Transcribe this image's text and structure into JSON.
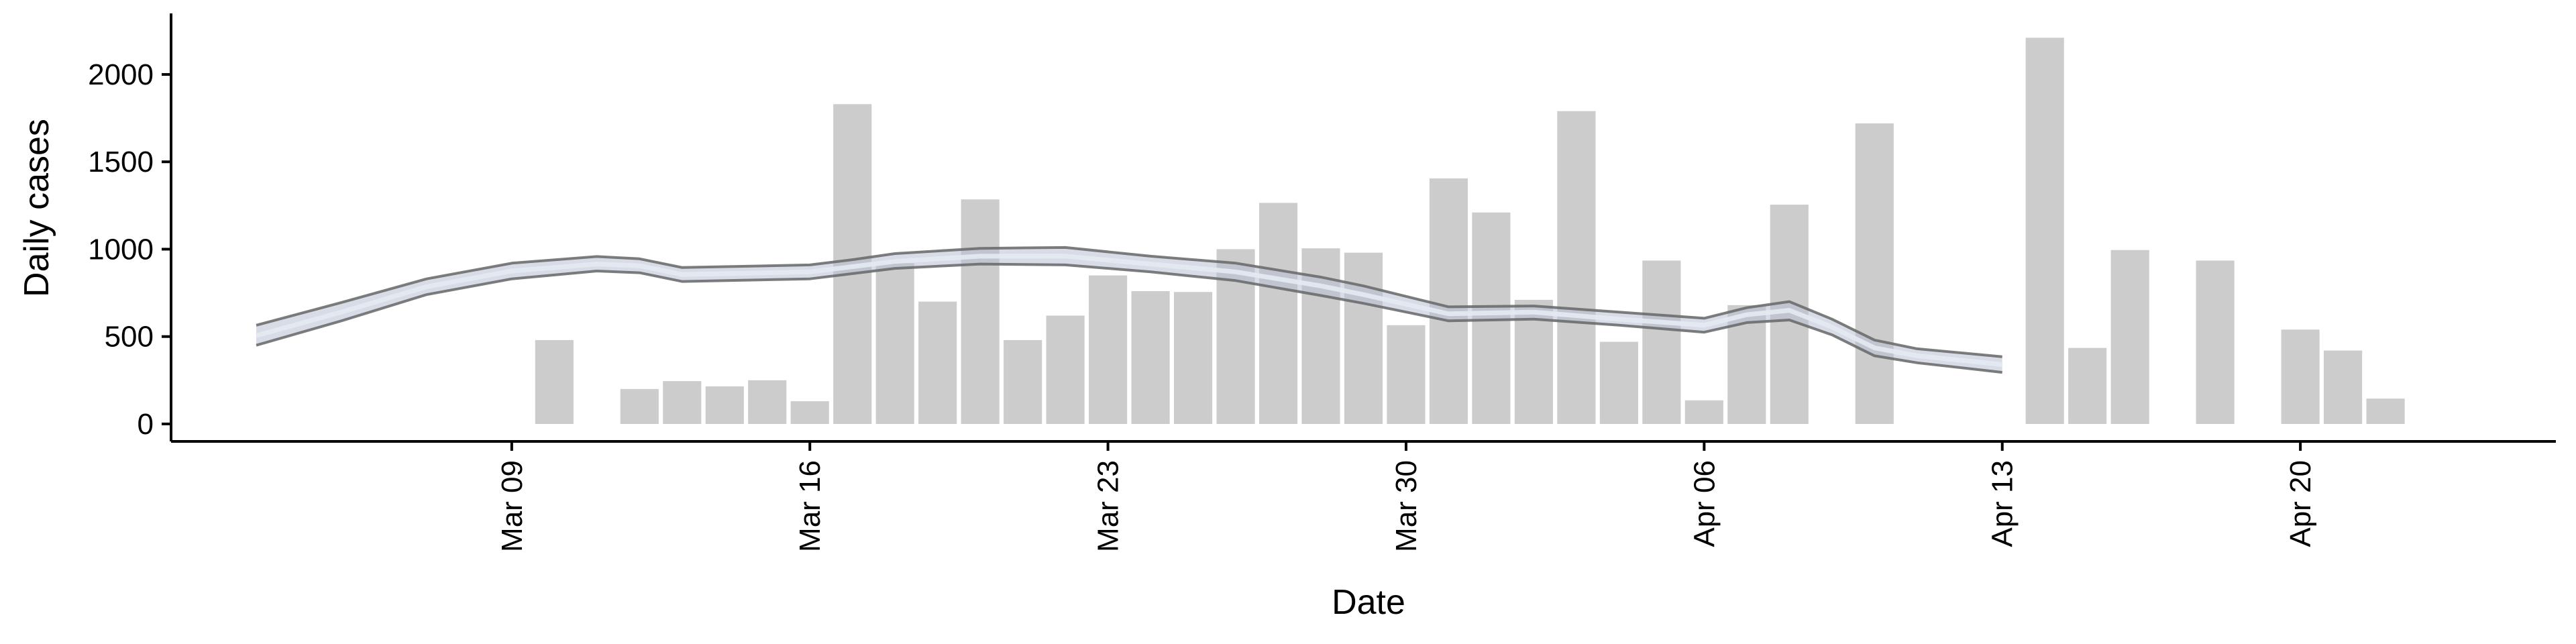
{
  "chart_data": {
    "type": "bar",
    "title": "",
    "xlabel": "Date",
    "ylabel": "Daily cases",
    "xlim": [
      "2020-03-01",
      "2020-04-26"
    ],
    "ylim": [
      -100,
      2330
    ],
    "grid": false,
    "x_ticks": [
      "2020-03-09",
      "2020-03-16",
      "2020-03-23",
      "2020-03-30",
      "2020-04-06",
      "2020-04-13",
      "2020-04-20"
    ],
    "x_tick_labels": [
      "Mar 09",
      "Mar 16",
      "Mar 23",
      "Mar 30",
      "Apr 06",
      "Apr 13",
      "Apr 20"
    ],
    "y_ticks": [
      0,
      500,
      1000,
      1500,
      2000
    ],
    "y_tick_labels": [
      "0",
      "500",
      "1000",
      "1500",
      "2000"
    ],
    "colors": {
      "bars": "#cccccc",
      "band_outline": "#666666",
      "band_fill": "#b8c0d4",
      "center_line": "#e6eaf2",
      "axis": "#000000"
    },
    "series": [
      {
        "type": "bar",
        "data": [
          {
            "date": "2020-03-10",
            "value": 480
          },
          {
            "date": "2020-03-12",
            "value": 200
          },
          {
            "date": "2020-03-13",
            "value": 245
          },
          {
            "date": "2020-03-14",
            "value": 215
          },
          {
            "date": "2020-03-15",
            "value": 250
          },
          {
            "date": "2020-03-16",
            "value": 130
          },
          {
            "date": "2020-03-17",
            "value": 1830
          },
          {
            "date": "2020-03-18",
            "value": 920
          },
          {
            "date": "2020-03-19",
            "value": 700
          },
          {
            "date": "2020-03-20",
            "value": 1285
          },
          {
            "date": "2020-03-21",
            "value": 480
          },
          {
            "date": "2020-03-22",
            "value": 620
          },
          {
            "date": "2020-03-23",
            "value": 850
          },
          {
            "date": "2020-03-24",
            "value": 760
          },
          {
            "date": "2020-03-25",
            "value": 755
          },
          {
            "date": "2020-03-26",
            "value": 1000
          },
          {
            "date": "2020-03-27",
            "value": 1265
          },
          {
            "date": "2020-03-28",
            "value": 1005
          },
          {
            "date": "2020-03-29",
            "value": 980
          },
          {
            "date": "2020-03-30",
            "value": 565
          },
          {
            "date": "2020-03-31",
            "value": 1405
          },
          {
            "date": "2020-04-01",
            "value": 1210
          },
          {
            "date": "2020-04-02",
            "value": 710
          },
          {
            "date": "2020-04-03",
            "value": 1790
          },
          {
            "date": "2020-04-04",
            "value": 470
          },
          {
            "date": "2020-04-05",
            "value": 935
          },
          {
            "date": "2020-04-06",
            "value": 135
          },
          {
            "date": "2020-04-07",
            "value": 680
          },
          {
            "date": "2020-04-08",
            "value": 1255
          },
          {
            "date": "2020-04-10",
            "value": 1720
          },
          {
            "date": "2020-04-14",
            "value": 2210
          },
          {
            "date": "2020-04-15",
            "value": 435
          },
          {
            "date": "2020-04-16",
            "value": 995
          },
          {
            "date": "2020-04-18",
            "value": 935
          },
          {
            "date": "2020-04-20",
            "value": 540
          },
          {
            "date": "2020-04-21",
            "value": 420
          },
          {
            "date": "2020-04-22",
            "value": 145
          }
        ]
      },
      {
        "type": "band",
        "data": [
          {
            "date": "2020-03-03",
            "lower": 450,
            "upper": 565,
            "mid": 505
          },
          {
            "date": "2020-03-05",
            "lower": 590,
            "upper": 695,
            "mid": 640
          },
          {
            "date": "2020-03-07",
            "lower": 740,
            "upper": 830,
            "mid": 785
          },
          {
            "date": "2020-03-09",
            "lower": 830,
            "upper": 920,
            "mid": 875
          },
          {
            "date": "2020-03-11",
            "lower": 875,
            "upper": 958,
            "mid": 915
          },
          {
            "date": "2020-03-12",
            "lower": 865,
            "upper": 945,
            "mid": 905
          },
          {
            "date": "2020-03-13",
            "lower": 815,
            "upper": 895,
            "mid": 855
          },
          {
            "date": "2020-03-16",
            "lower": 830,
            "upper": 910,
            "mid": 870
          },
          {
            "date": "2020-03-17",
            "lower": 860,
            "upper": 940,
            "mid": 900
          },
          {
            "date": "2020-03-18",
            "lower": 890,
            "upper": 975,
            "mid": 930
          },
          {
            "date": "2020-03-20",
            "lower": 915,
            "upper": 1005,
            "mid": 960
          },
          {
            "date": "2020-03-22",
            "lower": 910,
            "upper": 1010,
            "mid": 960
          },
          {
            "date": "2020-03-24",
            "lower": 870,
            "upper": 960,
            "mid": 915
          },
          {
            "date": "2020-03-26",
            "lower": 820,
            "upper": 920,
            "mid": 870
          },
          {
            "date": "2020-03-28",
            "lower": 735,
            "upper": 840,
            "mid": 790
          },
          {
            "date": "2020-03-29",
            "lower": 690,
            "upper": 790,
            "mid": 740
          },
          {
            "date": "2020-03-30",
            "lower": 640,
            "upper": 730,
            "mid": 685
          },
          {
            "date": "2020-03-31",
            "lower": 590,
            "upper": 670,
            "mid": 630
          },
          {
            "date": "2020-04-02",
            "lower": 600,
            "upper": 675,
            "mid": 640
          },
          {
            "date": "2020-04-04",
            "lower": 565,
            "upper": 640,
            "mid": 600
          },
          {
            "date": "2020-04-06",
            "lower": 525,
            "upper": 605,
            "mid": 565
          },
          {
            "date": "2020-04-07",
            "lower": 580,
            "upper": 665,
            "mid": 625
          },
          {
            "date": "2020-04-08",
            "lower": 595,
            "upper": 700,
            "mid": 650
          },
          {
            "date": "2020-04-09",
            "lower": 510,
            "upper": 600,
            "mid": 555
          },
          {
            "date": "2020-04-10",
            "lower": 390,
            "upper": 480,
            "mid": 435
          },
          {
            "date": "2020-04-11",
            "lower": 350,
            "upper": 430,
            "mid": 390
          },
          {
            "date": "2020-04-13",
            "lower": 295,
            "upper": 385,
            "mid": 340
          }
        ]
      }
    ]
  }
}
